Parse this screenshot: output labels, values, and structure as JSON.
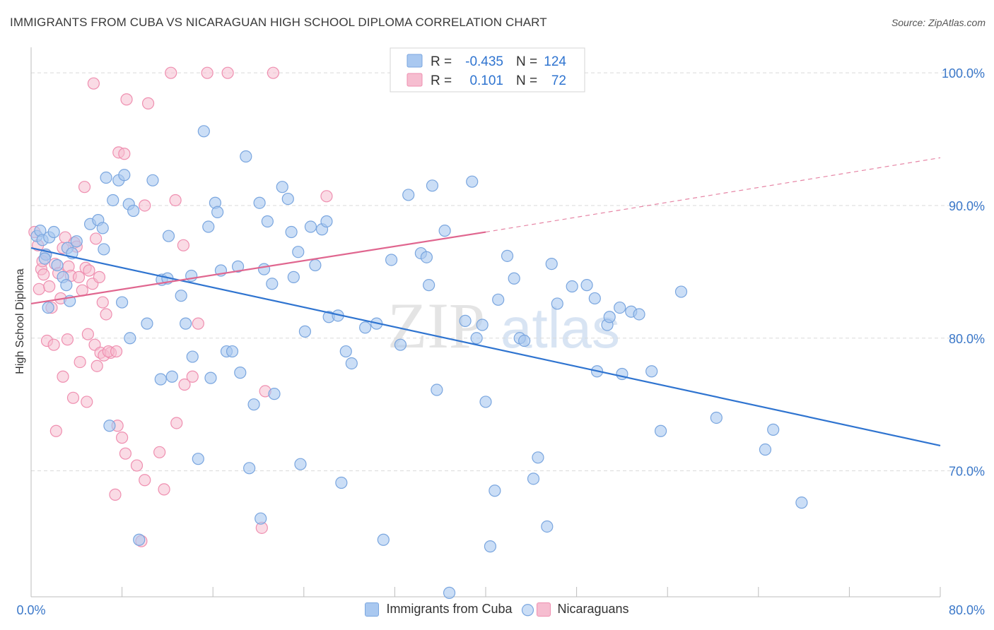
{
  "header": {
    "title": "IMMIGRANTS FROM CUBA VS NICARAGUAN HIGH SCHOOL DIPLOMA CORRELATION CHART",
    "source": "Source: ZipAtlas.com"
  },
  "watermark": {
    "zip": "ZIP",
    "atlas": "atlas"
  },
  "colors": {
    "blue_fill": "#a9c8f0",
    "blue_stroke": "#7aa6df",
    "blue_line": "#2f74d0",
    "pink_fill": "#f6bdd0",
    "pink_stroke": "#ef8fb0",
    "pink_line": "#e0668f",
    "tick_label": "#3b78c9",
    "grid": "#d9d9d9"
  },
  "legend_stats": {
    "rows": [
      {
        "r_label": "R =",
        "r_value": "-0.435",
        "n_label": "N =",
        "n_value": "124"
      },
      {
        "r_label": "R =",
        "r_value": "0.101",
        "n_label": "N =",
        "n_value": "72"
      }
    ]
  },
  "legend_bottom": {
    "series1": "Immigrants from Cuba",
    "series2": "Nicaraguans"
  },
  "chart_data": {
    "type": "scatter",
    "ylabel": "High School Diploma",
    "x_tick_labels": [
      "0.0%",
      "80.0%"
    ],
    "y_tick_labels": [
      "100.0%",
      "90.0%",
      "80.0%",
      "70.0%"
    ],
    "xlim": [
      0,
      80
    ],
    "ylim": [
      60.5,
      101.5
    ],
    "y_ticks": [
      100,
      90,
      80,
      70
    ],
    "series": [
      {
        "name": "Immigrants from Cuba",
        "r": -0.435,
        "n": 124,
        "trend": {
          "x": [
            0,
            80
          ],
          "y": [
            86.8,
            71.9
          ]
        },
        "points": [
          [
            0.5,
            87.7
          ],
          [
            0.8,
            88.1
          ],
          [
            1.0,
            87.4
          ],
          [
            1.3,
            86.3
          ],
          [
            1.6,
            87.6
          ],
          [
            2.0,
            88.0
          ],
          [
            1.2,
            86.0
          ],
          [
            2.3,
            85.5
          ],
          [
            2.8,
            84.6
          ],
          [
            3.2,
            86.8
          ],
          [
            3.6,
            86.4
          ],
          [
            4.0,
            87.3
          ],
          [
            1.5,
            82.3
          ],
          [
            3.1,
            84.0
          ],
          [
            5.2,
            88.6
          ],
          [
            5.9,
            88.9
          ],
          [
            6.3,
            88.3
          ],
          [
            6.6,
            92.1
          ],
          [
            7.2,
            90.4
          ],
          [
            7.7,
            91.9
          ],
          [
            8.2,
            92.3
          ],
          [
            8.6,
            90.1
          ],
          [
            9.0,
            89.6
          ],
          [
            10.7,
            91.9
          ],
          [
            6.4,
            86.7
          ],
          [
            8.0,
            82.7
          ],
          [
            8.7,
            80.0
          ],
          [
            10.2,
            81.1
          ],
          [
            12.1,
            87.7
          ],
          [
            11.5,
            84.4
          ],
          [
            12.0,
            84.5
          ],
          [
            13.2,
            83.2
          ],
          [
            13.6,
            81.1
          ],
          [
            14.1,
            84.7
          ],
          [
            15.2,
            95.6
          ],
          [
            15.6,
            88.4
          ],
          [
            16.2,
            90.2
          ],
          [
            16.4,
            89.5
          ],
          [
            16.7,
            85.1
          ],
          [
            17.2,
            79.0
          ],
          [
            17.7,
            79.0
          ],
          [
            18.2,
            85.4
          ],
          [
            18.4,
            77.4
          ],
          [
            18.9,
            93.7
          ],
          [
            19.6,
            75.0
          ],
          [
            20.1,
            90.2
          ],
          [
            20.5,
            85.2
          ],
          [
            20.8,
            88.8
          ],
          [
            21.2,
            84.1
          ],
          [
            21.4,
            75.8
          ],
          [
            22.1,
            91.4
          ],
          [
            22.6,
            90.5
          ],
          [
            22.9,
            88.0
          ],
          [
            23.1,
            84.6
          ],
          [
            23.5,
            86.5
          ],
          [
            24.1,
            80.5
          ],
          [
            24.6,
            88.4
          ],
          [
            25.0,
            85.5
          ],
          [
            25.6,
            88.2
          ],
          [
            26.0,
            88.8
          ],
          [
            26.2,
            81.6
          ],
          [
            27.0,
            81.7
          ],
          [
            27.7,
            79.0
          ],
          [
            28.2,
            78.1
          ],
          [
            29.4,
            80.8
          ],
          [
            30.4,
            81.1
          ],
          [
            31.0,
            64.8
          ],
          [
            31.7,
            85.9
          ],
          [
            32.5,
            79.5
          ],
          [
            33.2,
            90.8
          ],
          [
            34.3,
            86.4
          ],
          [
            34.8,
            86.1
          ],
          [
            35.0,
            84.0
          ],
          [
            35.3,
            91.5
          ],
          [
            35.7,
            76.1
          ],
          [
            36.4,
            88.1
          ],
          [
            36.8,
            60.8
          ],
          [
            38.2,
            81.3
          ],
          [
            38.8,
            91.8
          ],
          [
            39.2,
            80.0
          ],
          [
            39.7,
            81.0
          ],
          [
            40.0,
            75.2
          ],
          [
            40.4,
            64.3
          ],
          [
            40.8,
            68.5
          ],
          [
            41.1,
            82.9
          ],
          [
            41.9,
            86.2
          ],
          [
            42.5,
            84.5
          ],
          [
            43.0,
            80.0
          ],
          [
            43.4,
            79.8
          ],
          [
            44.2,
            69.4
          ],
          [
            44.6,
            71.0
          ],
          [
            45.4,
            65.8
          ],
          [
            45.8,
            85.6
          ],
          [
            46.3,
            82.6
          ],
          [
            47.6,
            83.9
          ],
          [
            48.9,
            84.0
          ],
          [
            49.6,
            83.0
          ],
          [
            49.8,
            77.5
          ],
          [
            50.7,
            81.0
          ],
          [
            50.9,
            81.6
          ],
          [
            51.8,
            82.3
          ],
          [
            52.0,
            77.3
          ],
          [
            52.8,
            82.0
          ],
          [
            53.5,
            81.8
          ],
          [
            54.6,
            77.5
          ],
          [
            55.4,
            73.0
          ],
          [
            57.2,
            83.5
          ],
          [
            60.3,
            74.0
          ],
          [
            64.6,
            71.6
          ],
          [
            65.3,
            73.1
          ],
          [
            67.8,
            67.6
          ],
          [
            9.5,
            64.8
          ],
          [
            19.2,
            70.2
          ],
          [
            11.4,
            76.9
          ],
          [
            12.4,
            77.1
          ],
          [
            14.2,
            78.6
          ],
          [
            15.8,
            77.0
          ],
          [
            6.9,
            73.4
          ],
          [
            14.7,
            70.9
          ],
          [
            23.7,
            70.5
          ],
          [
            20.2,
            66.4
          ],
          [
            27.3,
            69.1
          ],
          [
            43.7,
            59.5
          ],
          [
            3.4,
            82.8
          ]
        ]
      },
      {
        "name": "Nicaraguans",
        "r": 0.101,
        "n": 72,
        "trend": {
          "x": [
            0,
            40
          ],
          "y": [
            82.6,
            88.0
          ]
        },
        "trend_ext": {
          "x": [
            40,
            80
          ],
          "y": [
            88.0,
            93.6
          ]
        },
        "points": [
          [
            0.3,
            88.0
          ],
          [
            0.6,
            87.0
          ],
          [
            0.9,
            85.2
          ],
          [
            1.1,
            84.8
          ],
          [
            1.3,
            86.3
          ],
          [
            0.7,
            83.7
          ],
          [
            1.6,
            83.9
          ],
          [
            1.8,
            82.3
          ],
          [
            2.1,
            85.6
          ],
          [
            2.4,
            84.9
          ],
          [
            2.6,
            83.0
          ],
          [
            2.8,
            86.8
          ],
          [
            3.0,
            87.6
          ],
          [
            3.3,
            85.4
          ],
          [
            3.5,
            84.7
          ],
          [
            3.8,
            87.2
          ],
          [
            4.0,
            86.9
          ],
          [
            4.2,
            84.6
          ],
          [
            4.5,
            83.6
          ],
          [
            4.8,
            85.3
          ],
          [
            5.1,
            85.1
          ],
          [
            5.4,
            84.1
          ],
          [
            5.7,
            87.5
          ],
          [
            6.0,
            84.6
          ],
          [
            6.3,
            82.7
          ],
          [
            6.6,
            81.8
          ],
          [
            3.2,
            79.9
          ],
          [
            4.3,
            78.2
          ],
          [
            5.0,
            80.3
          ],
          [
            5.6,
            79.5
          ],
          [
            6.1,
            78.9
          ],
          [
            6.4,
            78.7
          ],
          [
            7.0,
            78.9
          ],
          [
            1.4,
            79.8
          ],
          [
            2.8,
            77.1
          ],
          [
            3.7,
            75.5
          ],
          [
            4.9,
            75.2
          ],
          [
            5.8,
            77.9
          ],
          [
            6.8,
            79.0
          ],
          [
            7.5,
            79.0
          ],
          [
            2.2,
            73.0
          ],
          [
            7.6,
            73.4
          ],
          [
            8.0,
            72.5
          ],
          [
            8.3,
            71.3
          ],
          [
            9.3,
            70.4
          ],
          [
            10.0,
            69.3
          ],
          [
            11.7,
            68.6
          ],
          [
            11.3,
            71.4
          ],
          [
            7.4,
            68.2
          ],
          [
            9.7,
            64.7
          ],
          [
            12.8,
            73.6
          ],
          [
            13.5,
            76.5
          ],
          [
            14.2,
            77.1
          ],
          [
            12.7,
            90.4
          ],
          [
            13.4,
            87.0
          ],
          [
            10.0,
            90.0
          ],
          [
            7.7,
            94.0
          ],
          [
            8.2,
            93.9
          ],
          [
            8.4,
            98.0
          ],
          [
            10.3,
            97.7
          ],
          [
            5.5,
            99.2
          ],
          [
            12.3,
            100.0
          ],
          [
            17.3,
            100.0
          ],
          [
            21.3,
            100.0
          ],
          [
            4.7,
            91.4
          ],
          [
            15.5,
            100.0
          ],
          [
            26.0,
            90.7
          ],
          [
            20.6,
            76.0
          ],
          [
            20.3,
            65.7
          ],
          [
            14.7,
            81.1
          ],
          [
            1.0,
            85.8
          ],
          [
            2.0,
            79.5
          ]
        ]
      }
    ]
  }
}
